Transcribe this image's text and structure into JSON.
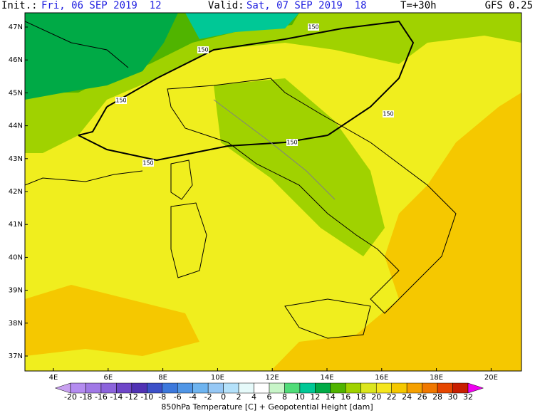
{
  "header": {
    "init_label": "Init.:",
    "init": "Fri, 06 SEP 2019  12",
    "valid_label": "Valid:",
    "valid": "Sat, 07 SEP 2019  18",
    "lead": "T=+30h",
    "model": "GFS 0.25"
  },
  "lat_labels": [
    "47N",
    "46N",
    "45N",
    "44N",
    "43N",
    "42N",
    "41N",
    "40N",
    "39N",
    "38N",
    "37N"
  ],
  "lon_labels": [
    "4E",
    "6E",
    "8E",
    "10E",
    "12E",
    "14E",
    "16E",
    "18E",
    "20E"
  ],
  "contour_labels": [
    150,
    150,
    150,
    150,
    150,
    150
  ],
  "colorbar": {
    "labels": [
      -20,
      -18,
      -16,
      -14,
      -12,
      -10,
      -8,
      -6,
      -4,
      -2,
      0,
      2,
      4,
      6,
      8,
      10,
      12,
      14,
      16,
      18,
      20,
      22,
      24,
      26,
      28,
      30,
      32
    ],
    "colors": [
      "#c8a0f0",
      "#b48cf0",
      "#a078e6",
      "#8c64dc",
      "#6e46c8",
      "#5032b4",
      "#3c50c8",
      "#3c78dc",
      "#5096e6",
      "#6eb4f0",
      "#96c8f5",
      "#b4e1fa",
      "#e6fafa",
      "#ffffff",
      "#c8f5c8",
      "#50dc78",
      "#00c896",
      "#00aa46",
      "#50b400",
      "#a0d200",
      "#dce61e",
      "#f5e61e",
      "#f5c800",
      "#f5a000",
      "#f07800",
      "#e64600",
      "#c81e00",
      "#f000f0"
    ],
    "title": "850hPa Temperature [C] + Geopotential Height [dam]"
  }
}
